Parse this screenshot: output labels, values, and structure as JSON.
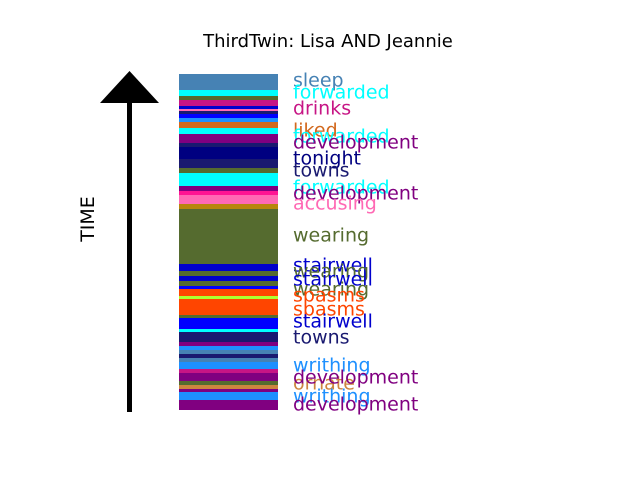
{
  "chart_data": {
    "type": "bar",
    "title": "ThirdTwin: Lisa AND Jeannie",
    "ylabel": "TIME",
    "segments": [
      {
        "label": "sleep",
        "color": "#4682b4",
        "start": 0,
        "end": 16
      },
      {
        "label": "forwarded",
        "color": "#00ffff",
        "start": 16,
        "end": 22
      },
      {
        "label": "",
        "color": "#556b2f",
        "start": 22,
        "end": 26
      },
      {
        "label": "drinks",
        "color": "#c71585",
        "start": 26,
        "end": 32
      },
      {
        "label": "",
        "color": "#0000cd",
        "start": 32,
        "end": 35
      },
      {
        "label": "",
        "color": "#ff69b4",
        "start": 35,
        "end": 37
      },
      {
        "label": "",
        "color": "#191970",
        "start": 37,
        "end": 40
      },
      {
        "label": "",
        "color": "#0000ff",
        "start": 40,
        "end": 44
      },
      {
        "label": "",
        "color": "#1e90ff",
        "start": 44,
        "end": 48
      },
      {
        "label": "liked",
        "color": "#d2691e",
        "start": 48,
        "end": 54
      },
      {
        "label": "forwarded",
        "color": "#00ffff",
        "start": 54,
        "end": 60
      },
      {
        "label": "development",
        "color": "#800080",
        "start": 60,
        "end": 69
      },
      {
        "label": "",
        "color": "#191970",
        "start": 69,
        "end": 73
      },
      {
        "label": "tonight",
        "color": "#000080",
        "start": 73,
        "end": 85
      },
      {
        "label": "towns",
        "color": "#191970",
        "start": 85,
        "end": 94
      },
      {
        "label": "",
        "color": "#556b2f",
        "start": 94,
        "end": 99
      },
      {
        "label": "",
        "color": "#00ffff",
        "start": 99,
        "end": 103
      },
      {
        "label": "forwarded",
        "color": "#00ffff",
        "start": 103,
        "end": 112
      },
      {
        "label": "development",
        "color": "#800080",
        "start": 112,
        "end": 117
      },
      {
        "label": "",
        "color": "#ff1493",
        "start": 117,
        "end": 121
      },
      {
        "label": "accusing",
        "color": "#ff69b4",
        "start": 121,
        "end": 130
      },
      {
        "label": "",
        "color": "#b8860b",
        "start": 130,
        "end": 135
      },
      {
        "label": "wearing",
        "color": "#556b2f",
        "start": 135,
        "end": 190
      },
      {
        "label": "stairwell",
        "color": "#0000cd",
        "start": 190,
        "end": 197
      },
      {
        "label": "wearing",
        "color": "#556b2f",
        "start": 197,
        "end": 202
      },
      {
        "label": "stairwell",
        "color": "#0000cd",
        "start": 202,
        "end": 207
      },
      {
        "label": "wearing",
        "color": "#556b2f",
        "start": 207,
        "end": 212
      },
      {
        "label": "",
        "color": "#0000ff",
        "start": 212,
        "end": 215
      },
      {
        "label": "spasms",
        "color": "#ff4500",
        "start": 215,
        "end": 222
      },
      {
        "label": "",
        "color": "#adff2f",
        "start": 222,
        "end": 225
      },
      {
        "label": "spasms",
        "color": "#ff4500",
        "start": 225,
        "end": 241
      },
      {
        "label": "",
        "color": "#556b2f",
        "start": 241,
        "end": 244
      },
      {
        "label": "stairwell",
        "color": "#0000ff",
        "start": 244,
        "end": 255
      },
      {
        "label": "",
        "color": "#00ffff",
        "start": 255,
        "end": 258
      },
      {
        "label": "towns",
        "color": "#191970",
        "start": 258,
        "end": 268
      },
      {
        "label": "",
        "color": "#800080",
        "start": 268,
        "end": 272
      },
      {
        "label": "",
        "color": "#1e90ff",
        "start": 272,
        "end": 276
      },
      {
        "label": "",
        "color": "#4682b4",
        "start": 276,
        "end": 280
      },
      {
        "label": "",
        "color": "#191970",
        "start": 280,
        "end": 284
      },
      {
        "label": "",
        "color": "#4682b4",
        "start": 284,
        "end": 288
      },
      {
        "label": "writhing",
        "color": "#1e90ff",
        "start": 288,
        "end": 295
      },
      {
        "label": "",
        "color": "#c71585",
        "start": 295,
        "end": 299
      },
      {
        "label": "development",
        "color": "#800080",
        "start": 299,
        "end": 307
      },
      {
        "label": "",
        "color": "#556b2f",
        "start": 307,
        "end": 311
      },
      {
        "label": "ornate",
        "color": "#cd853f",
        "start": 311,
        "end": 315
      },
      {
        "label": "",
        "color": "#800080",
        "start": 315,
        "end": 318
      },
      {
        "label": "writhing",
        "color": "#1e90ff",
        "start": 318,
        "end": 326
      },
      {
        "label": "development",
        "color": "#800080",
        "start": 326,
        "end": 336
      }
    ],
    "labels": [
      {
        "text": "sleep",
        "color": "#4682b4",
        "at": 7
      },
      {
        "text": "forwarded",
        "color": "#00ffff",
        "at": 19
      },
      {
        "text": "drinks",
        "color": "#c71585",
        "at": 35
      },
      {
        "text": "liked",
        "color": "#d2691e",
        "at": 57
      },
      {
        "text": "forwarded",
        "color": "#00ffff",
        "at": 63
      },
      {
        "text": "development",
        "color": "#800080",
        "at": 69
      },
      {
        "text": "tonight",
        "color": "#000080",
        "at": 85
      },
      {
        "text": "towns",
        "color": "#191970",
        "at": 97
      },
      {
        "text": "forwarded",
        "color": "#00ffff",
        "at": 114
      },
      {
        "text": "development",
        "color": "#800080",
        "at": 120
      },
      {
        "text": "accusing",
        "color": "#ff69b4",
        "at": 130
      },
      {
        "text": "wearing",
        "color": "#556b2f",
        "at": 162
      },
      {
        "text": "stairwell",
        "color": "#0000cd",
        "at": 192
      },
      {
        "text": "wearing",
        "color": "#556b2f",
        "at": 198
      },
      {
        "text": "stairwell",
        "color": "#0000cd",
        "at": 206
      },
      {
        "text": "wearing",
        "color": "#556b2f",
        "at": 216
      },
      {
        "text": "spasms",
        "color": "#ff4500",
        "at": 222
      },
      {
        "text": "spasms",
        "color": "#ff4500",
        "at": 236
      },
      {
        "text": "stairwell",
        "color": "#0000cd",
        "at": 248
      },
      {
        "text": "towns",
        "color": "#191970",
        "at": 264
      },
      {
        "text": "writhing",
        "color": "#1e90ff",
        "at": 292
      },
      {
        "text": "ornate",
        "color": "#cd853f",
        "at": 310
      },
      {
        "text": "development",
        "color": "#800080",
        "at": 304
      },
      {
        "text": "writhing",
        "color": "#1e90ff",
        "at": 323
      },
      {
        "text": "development",
        "color": "#800080",
        "at": 331
      }
    ]
  }
}
